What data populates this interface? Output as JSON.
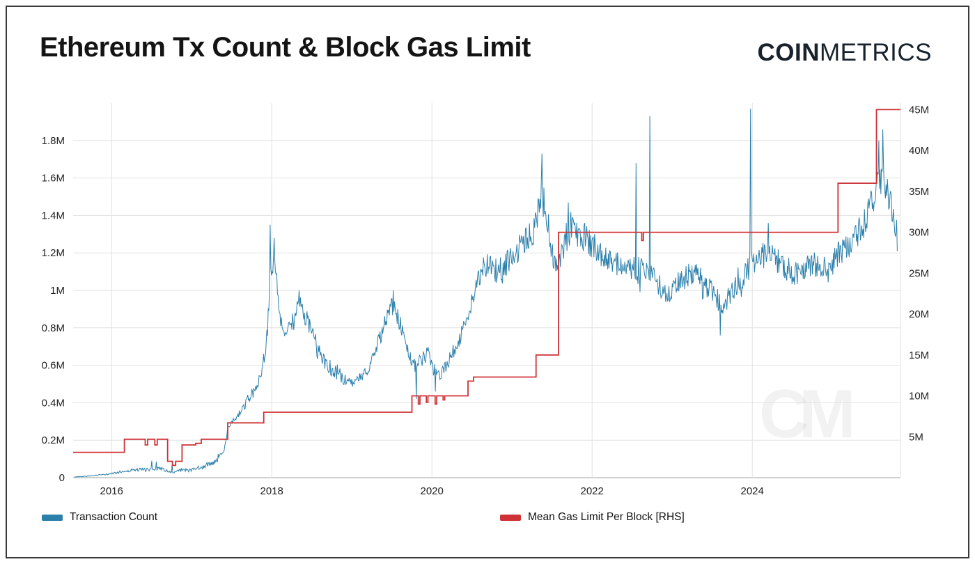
{
  "header": {
    "title": "Ethereum Tx Count & Block Gas Limit",
    "logo_bold": "COIN",
    "logo_light": "METRICS"
  },
  "watermark": "CM",
  "legend": [
    {
      "label": "Transaction Count",
      "color": "#2b7fab"
    },
    {
      "label": "Mean Gas Limit Per Block [RHS]",
      "color": "#cf3236"
    }
  ],
  "chart_data": {
    "type": "line",
    "title": "Ethereum Tx Count & Block Gas Limit",
    "grid": true,
    "x_range": [
      2015.52,
      2025.85
    ],
    "x_ticks": [
      2016,
      2018,
      2020,
      2022,
      2024
    ],
    "x_tick_labels": [
      "2016",
      "2018",
      "2020",
      "2022",
      "2024"
    ],
    "left_axis": {
      "label": "Transaction Count",
      "unit": "M",
      "range": [
        0,
        2.0
      ],
      "tick_values": [
        0,
        0.2,
        0.4,
        0.6,
        0.8,
        1.0,
        1.2,
        1.4,
        1.6,
        1.8
      ],
      "ticks": [
        "0",
        "0.2M",
        "0.4M",
        "0.6M",
        "0.8M",
        "1M",
        "1.2M",
        "1.4M",
        "1.6M",
        "1.8M"
      ]
    },
    "right_axis": {
      "label": "Mean Gas Limit Per Block",
      "unit": "M",
      "range": [
        0,
        45.8
      ],
      "tick_values": [
        5,
        10,
        15,
        20,
        25,
        30,
        35,
        40,
        45
      ],
      "ticks": [
        "5M",
        "10M",
        "15M",
        "20M",
        "25M",
        "30M",
        "35M",
        "40M",
        "45M"
      ]
    },
    "series": [
      {
        "name": "Transaction Count",
        "axis": "left",
        "color": "#2b7fab",
        "noise": 0.06,
        "anchors": [
          [
            2015.55,
            0.004
          ],
          [
            2015.75,
            0.01
          ],
          [
            2015.95,
            0.018
          ],
          [
            2016.1,
            0.03
          ],
          [
            2016.3,
            0.042
          ],
          [
            2016.5,
            0.045
          ],
          [
            2016.62,
            0.05
          ],
          [
            2016.72,
            0.03
          ],
          [
            2016.78,
            0.025
          ],
          [
            2016.85,
            0.04
          ],
          [
            2017.0,
            0.042
          ],
          [
            2017.15,
            0.06
          ],
          [
            2017.3,
            0.09
          ],
          [
            2017.4,
            0.14
          ],
          [
            2017.45,
            0.26
          ],
          [
            2017.52,
            0.3
          ],
          [
            2017.6,
            0.33
          ],
          [
            2017.7,
            0.42
          ],
          [
            2017.8,
            0.47
          ],
          [
            2017.88,
            0.58
          ],
          [
            2017.94,
            0.75
          ],
          [
            2017.98,
            1.05
          ],
          [
            2018.02,
            1.15
          ],
          [
            2018.06,
            1.05
          ],
          [
            2018.1,
            0.88
          ],
          [
            2018.17,
            0.76
          ],
          [
            2018.25,
            0.82
          ],
          [
            2018.33,
            0.95
          ],
          [
            2018.4,
            0.88
          ],
          [
            2018.5,
            0.78
          ],
          [
            2018.6,
            0.66
          ],
          [
            2018.72,
            0.57
          ],
          [
            2018.85,
            0.54
          ],
          [
            2019.0,
            0.5
          ],
          [
            2019.15,
            0.54
          ],
          [
            2019.3,
            0.68
          ],
          [
            2019.45,
            0.88
          ],
          [
            2019.52,
            0.92
          ],
          [
            2019.6,
            0.82
          ],
          [
            2019.7,
            0.68
          ],
          [
            2019.78,
            0.6
          ],
          [
            2019.85,
            0.62
          ],
          [
            2019.95,
            0.66
          ],
          [
            2020.02,
            0.58
          ],
          [
            2020.1,
            0.54
          ],
          [
            2020.2,
            0.62
          ],
          [
            2020.3,
            0.7
          ],
          [
            2020.4,
            0.8
          ],
          [
            2020.5,
            0.95
          ],
          [
            2020.6,
            1.08
          ],
          [
            2020.7,
            1.15
          ],
          [
            2020.8,
            1.1
          ],
          [
            2020.9,
            1.12
          ],
          [
            2021.0,
            1.18
          ],
          [
            2021.15,
            1.25
          ],
          [
            2021.28,
            1.32
          ],
          [
            2021.36,
            1.5
          ],
          [
            2021.42,
            1.45
          ],
          [
            2021.48,
            1.25
          ],
          [
            2021.55,
            1.12
          ],
          [
            2021.65,
            1.22
          ],
          [
            2021.75,
            1.32
          ],
          [
            2021.85,
            1.3
          ],
          [
            2021.95,
            1.26
          ],
          [
            2022.1,
            1.2
          ],
          [
            2022.25,
            1.16
          ],
          [
            2022.4,
            1.12
          ],
          [
            2022.55,
            1.12
          ],
          [
            2022.7,
            1.1
          ],
          [
            2022.85,
            1.02
          ],
          [
            2022.95,
            0.97
          ],
          [
            2023.1,
            1.05
          ],
          [
            2023.25,
            1.1
          ],
          [
            2023.4,
            1.04
          ],
          [
            2023.55,
            0.96
          ],
          [
            2023.65,
            0.92
          ],
          [
            2023.75,
            1.0
          ],
          [
            2023.9,
            1.08
          ],
          [
            2024.05,
            1.17
          ],
          [
            2024.2,
            1.2
          ],
          [
            2024.35,
            1.14
          ],
          [
            2024.5,
            1.08
          ],
          [
            2024.65,
            1.12
          ],
          [
            2024.8,
            1.14
          ],
          [
            2024.95,
            1.1
          ],
          [
            2025.05,
            1.18
          ],
          [
            2025.2,
            1.24
          ],
          [
            2025.35,
            1.32
          ],
          [
            2025.45,
            1.42
          ],
          [
            2025.55,
            1.55
          ],
          [
            2025.62,
            1.62
          ],
          [
            2025.68,
            1.55
          ],
          [
            2025.74,
            1.45
          ],
          [
            2025.8,
            1.3
          ]
        ],
        "spikes": [
          [
            2016.5,
            0.09
          ],
          [
            2016.56,
            0.085
          ],
          [
            2016.76,
            0.07
          ],
          [
            2017.98,
            1.35
          ],
          [
            2018.03,
            1.28
          ],
          [
            2018.34,
            1.0
          ],
          [
            2019.52,
            1.0
          ],
          [
            2019.8,
            0.42
          ],
          [
            2020.04,
            0.46
          ],
          [
            2021.37,
            1.73
          ],
          [
            2021.7,
            1.47
          ],
          [
            2022.55,
            1.68
          ],
          [
            2022.72,
            1.93
          ],
          [
            2023.6,
            0.76
          ],
          [
            2023.98,
            1.97
          ],
          [
            2024.2,
            1.36
          ],
          [
            2025.58,
            1.8
          ],
          [
            2025.63,
            1.86
          ]
        ]
      },
      {
        "name": "Mean Gas Limit Per Block [RHS]",
        "axis": "right",
        "color": "#cf3236",
        "style": "step",
        "points": [
          [
            2015.52,
            3.1
          ],
          [
            2016.16,
            4.7
          ],
          [
            2016.42,
            4.0
          ],
          [
            2016.45,
            4.7
          ],
          [
            2016.54,
            4.0
          ],
          [
            2016.57,
            4.7
          ],
          [
            2016.7,
            2.0
          ],
          [
            2016.76,
            1.5
          ],
          [
            2016.8,
            2.0
          ],
          [
            2016.88,
            4.0
          ],
          [
            2017.05,
            4.2
          ],
          [
            2017.12,
            4.7
          ],
          [
            2017.45,
            6.7
          ],
          [
            2017.9,
            8.0
          ],
          [
            2019.75,
            10.0
          ],
          [
            2019.83,
            9.0
          ],
          [
            2019.85,
            10.0
          ],
          [
            2019.93,
            9.2
          ],
          [
            2019.95,
            10.0
          ],
          [
            2020.04,
            9.0
          ],
          [
            2020.06,
            10.0
          ],
          [
            2020.14,
            9.5
          ],
          [
            2020.16,
            10.0
          ],
          [
            2020.45,
            11.8
          ],
          [
            2020.52,
            12.3
          ],
          [
            2021.3,
            15.0
          ],
          [
            2021.58,
            30.0
          ],
          [
            2022.62,
            29.0
          ],
          [
            2022.64,
            30.0
          ],
          [
            2025.07,
            36.0
          ],
          [
            2025.55,
            45.0
          ],
          [
            2025.85,
            45.0
          ]
        ]
      }
    ]
  }
}
